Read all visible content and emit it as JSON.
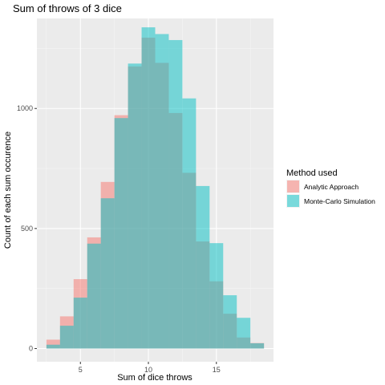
{
  "chart_data": {
    "type": "bar",
    "title": "Sum of throws of 3 dice",
    "xlabel": "Sum of dice throws",
    "ylabel": "Count of each sum occurence",
    "x": [
      3,
      4,
      5,
      6,
      7,
      8,
      9,
      10,
      11,
      12,
      13,
      14,
      15,
      16,
      17,
      18
    ],
    "xlim": [
      1.8,
      19.2
    ],
    "ylim": [
      -55,
      1375
    ],
    "xticks": [
      5,
      10,
      15
    ],
    "yticks": [
      0,
      500,
      1000
    ],
    "grid": true,
    "legend": {
      "title": "Method used",
      "position": "right"
    },
    "series": [
      {
        "name": "Analytic Approach",
        "color": "#F8766D",
        "values": [
          37,
          134,
          289,
          463,
          694,
          972,
          1175,
          1295,
          1190,
          981,
          732,
          446,
          280,
          145,
          46,
          23
        ]
      },
      {
        "name": "Monte-Carlo Simulation",
        "color": "#00BFC4",
        "values": [
          16,
          95,
          212,
          437,
          626,
          960,
          1187,
          1338,
          1310,
          1285,
          1042,
          677,
          439,
          222,
          128,
          22
        ]
      }
    ]
  }
}
